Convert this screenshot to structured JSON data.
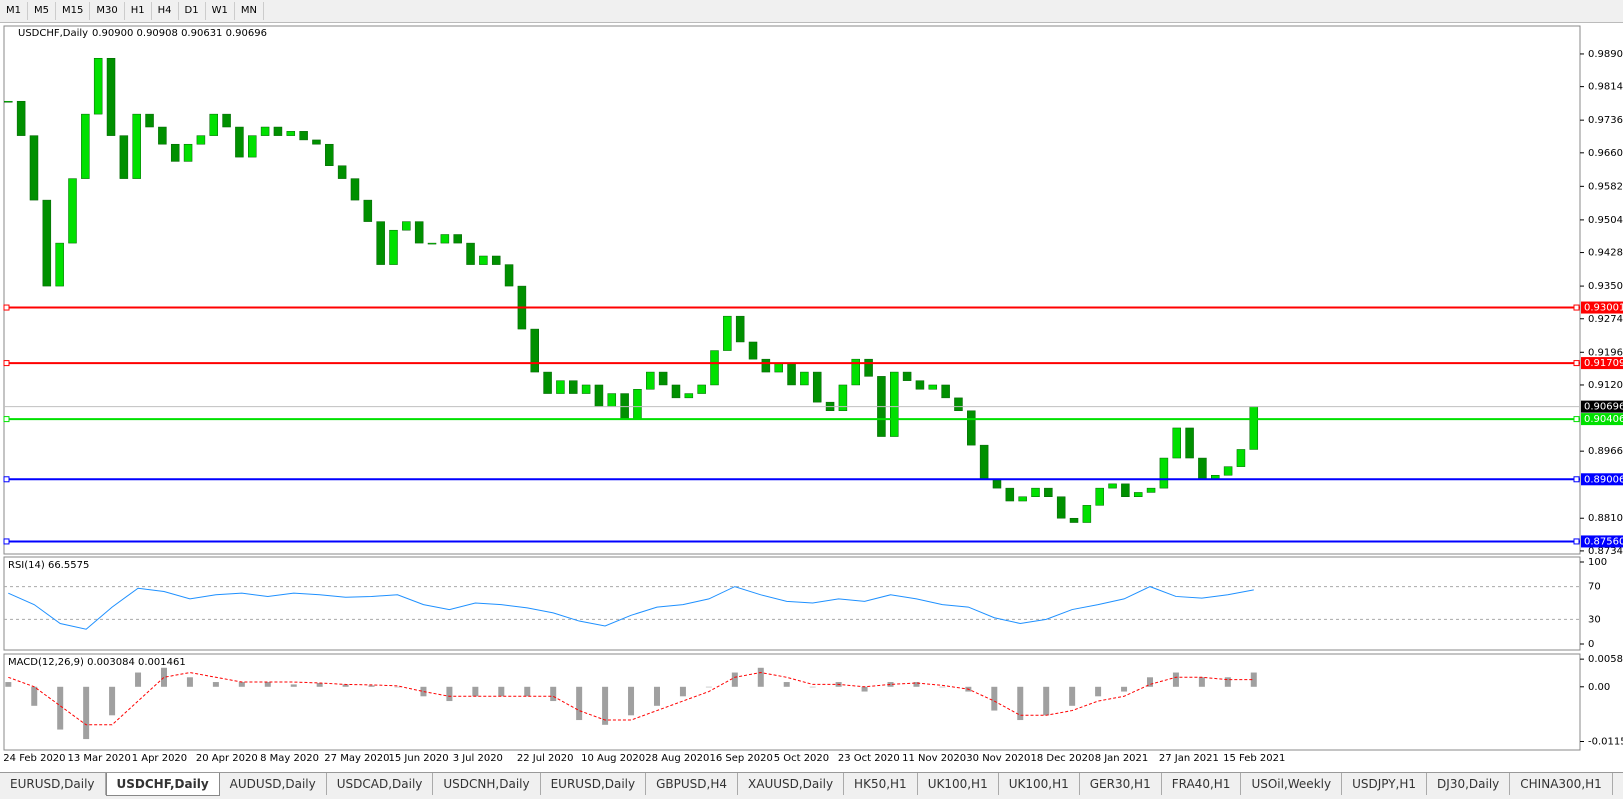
{
  "toolbar": {
    "timeframes": [
      "M1",
      "M5",
      "M15",
      "M30",
      "H1",
      "H4",
      "D1",
      "W1",
      "MN"
    ]
  },
  "chart_data": [
    {
      "type": "candlestick",
      "title": "USDCHF,Daily",
      "quote": "0.90900 0.90908 0.90631 0.90696",
      "categories": [
        "24 Feb 2020",
        null,
        null,
        null,
        null,
        "13 Mar 2020",
        null,
        null,
        null,
        null,
        "1 Apr 2020",
        null,
        null,
        null,
        null,
        "20 Apr 2020",
        null,
        null,
        null,
        null,
        "8 May 2020",
        null,
        null,
        null,
        null,
        "27 May 2020",
        null,
        null,
        null,
        null,
        "15 Jun 2020",
        null,
        null,
        null,
        null,
        "3 Jul 2020",
        null,
        null,
        null,
        null,
        "22 Jul 2020",
        null,
        null,
        null,
        null,
        "10 Aug 2020",
        null,
        null,
        null,
        null,
        "28 Aug 2020",
        null,
        null,
        null,
        null,
        "16 Sep 2020",
        null,
        null,
        null,
        null,
        "5 Oct 2020",
        null,
        null,
        null,
        null,
        "23 Oct 2020",
        null,
        null,
        null,
        null,
        "11 Nov 2020",
        null,
        null,
        null,
        null,
        "30 Nov 2020",
        null,
        null,
        null,
        null,
        "18 Dec 2020",
        null,
        null,
        null,
        null,
        "8 Jan 2021",
        null,
        null,
        null,
        null,
        "27 Jan 2021",
        null,
        null,
        null,
        null,
        "15 Feb 2021",
        null,
        null
      ],
      "values": [
        0.978,
        0.97,
        0.955,
        0.935,
        0.945,
        0.96,
        0.975,
        0.988,
        0.97,
        0.96,
        0.975,
        0.972,
        0.968,
        0.964,
        0.968,
        0.97,
        0.975,
        0.972,
        0.965,
        0.97,
        0.972,
        0.97,
        0.971,
        0.969,
        0.968,
        0.963,
        0.96,
        0.955,
        0.95,
        0.94,
        0.948,
        0.95,
        0.945,
        0.945,
        0.947,
        0.945,
        0.94,
        0.942,
        0.94,
        0.935,
        0.925,
        0.915,
        0.91,
        0.913,
        0.91,
        0.912,
        0.907,
        0.91,
        0.904,
        0.911,
        0.915,
        0.912,
        0.909,
        0.91,
        0.912,
        0.92,
        0.928,
        0.922,
        0.918,
        0.915,
        0.917,
        0.912,
        0.915,
        0.908,
        0.906,
        0.912,
        0.918,
        0.914,
        0.9,
        0.915,
        0.913,
        0.911,
        0.912,
        0.909,
        0.906,
        0.898,
        0.89,
        0.888,
        0.885,
        0.886,
        0.888,
        0.886,
        0.881,
        0.88,
        0.884,
        0.888,
        0.889,
        0.886,
        0.887,
        0.888,
        0.895,
        0.902,
        0.895,
        0.89,
        0.891,
        0.893,
        0.897,
        0.907
      ],
      "up_color": "#00e000",
      "down_color": "#009000",
      "ylim": [
        0.87268,
        0.9955
      ],
      "yticks": [
        {
          "value": 0.989,
          "label": "0.98900"
        },
        {
          "value": 0.9814,
          "label": "0.98140"
        },
        {
          "value": 0.9736,
          "label": "0.97360"
        },
        {
          "value": 0.966,
          "label": "0.96600"
        },
        {
          "value": 0.9582,
          "label": "0.95820"
        },
        {
          "value": 0.9504,
          "label": "0.95040"
        },
        {
          "value": 0.9428,
          "label": "0.94280"
        },
        {
          "value": 0.935,
          "label": "0.93500"
        },
        {
          "value": 0.9274,
          "label": "0.92740"
        },
        {
          "value": 0.9196,
          "label": "0.91960"
        },
        {
          "value": 0.912,
          "label": "0.91200"
        },
        {
          "value": 0.8966,
          "label": "0.89660"
        },
        {
          "value": 0.881,
          "label": "0.88100"
        },
        {
          "value": 0.8734,
          "label": "0.87340"
        }
      ],
      "levels": [
        {
          "value": 0.93001,
          "label": "0.93001",
          "color": "#ff0000"
        },
        {
          "value": 0.91709,
          "label": "0.91709",
          "color": "#ff0000"
        },
        {
          "value": 0.90406,
          "label": "0.90406",
          "color": "#00e000"
        },
        {
          "value": 0.89006,
          "label": "0.89006",
          "color": "#0000ff"
        },
        {
          "value": 0.8756,
          "label": "0.87560",
          "color": "#0000ff"
        }
      ],
      "last": {
        "value": 0.90696,
        "label": "0.90696"
      }
    },
    {
      "type": "line",
      "title": "RSI(14) 66.5575",
      "color": "#1e90ff",
      "values": [
        62,
        48,
        25,
        18,
        45,
        68,
        64,
        55,
        60,
        62,
        58,
        62,
        60,
        57,
        58,
        60,
        48,
        42,
        50,
        48,
        44,
        38,
        28,
        22,
        35,
        45,
        48,
        55,
        70,
        60,
        52,
        50,
        55,
        52,
        60,
        55,
        48,
        45,
        32,
        25,
        30,
        42,
        48,
        55,
        70,
        58,
        56,
        60,
        66
      ],
      "ylim": [
        0,
        100
      ],
      "yticks": [
        100,
        70,
        30,
        0
      ]
    },
    {
      "type": "macd",
      "title": "MACD(12,26,9) 0.003084 0.001461",
      "color": "#a0a0a0",
      "signal_color": "#ff0000",
      "histogram": [
        0.001,
        -0.004,
        -0.009,
        -0.011,
        -0.006,
        0.003,
        0.004,
        0.002,
        0.001,
        0.001,
        0.001,
        0.0005,
        0.0008,
        0.0005,
        0.0003,
        0,
        -0.002,
        -0.003,
        -0.002,
        -0.002,
        -0.002,
        -0.003,
        -0.007,
        -0.008,
        -0.006,
        -0.004,
        -0.002,
        0,
        0.003,
        0.004,
        0.001,
        0,
        0.001,
        -0.001,
        0.001,
        0.001,
        0,
        -0.001,
        -0.005,
        -0.007,
        -0.006,
        -0.004,
        -0.002,
        -0.001,
        0.002,
        0.003,
        0.002,
        0.002,
        0.003
      ],
      "signal": [
        0.002,
        0,
        -0.004,
        -0.008,
        -0.008,
        -0.003,
        0.002,
        0.003,
        0.002,
        0.001,
        0.001,
        0.001,
        0.0008,
        0.0005,
        0.0004,
        0.0002,
        -0.001,
        -0.002,
        -0.002,
        -0.002,
        -0.002,
        -0.002,
        -0.005,
        -0.007,
        -0.007,
        -0.005,
        -0.003,
        -0.001,
        0.002,
        0.003,
        0.002,
        0.0005,
        0.0005,
        0,
        0.0005,
        0.0008,
        0.0003,
        -0.0005,
        -0.003,
        -0.006,
        -0.006,
        -0.005,
        -0.003,
        -0.002,
        0.0005,
        0.002,
        0.002,
        0.0015,
        0.0015
      ],
      "ylim": [
        -0.0133,
        0.0069
      ],
      "yticks": [
        0.005818,
        {
          "value": 0,
          "label": "0.00"
        },
        -0.011514
      ]
    }
  ],
  "tabs": [
    "EURUSD,Daily",
    "USDCHF,Daily",
    "AUDUSD,Daily",
    "USDCAD,Daily",
    "USDCNH,Daily",
    "EURUSD,Daily",
    "GBPUSD,H4",
    "XAUUSD,Daily",
    "HK50,H1",
    "UK100,H1",
    "UK100,H1",
    "GER30,H1",
    "FRA40,H1",
    "USOil,Weekly",
    "USDJPY,H1",
    "DJ30,Daily",
    "CHINA300,H1",
    "U"
  ]
}
